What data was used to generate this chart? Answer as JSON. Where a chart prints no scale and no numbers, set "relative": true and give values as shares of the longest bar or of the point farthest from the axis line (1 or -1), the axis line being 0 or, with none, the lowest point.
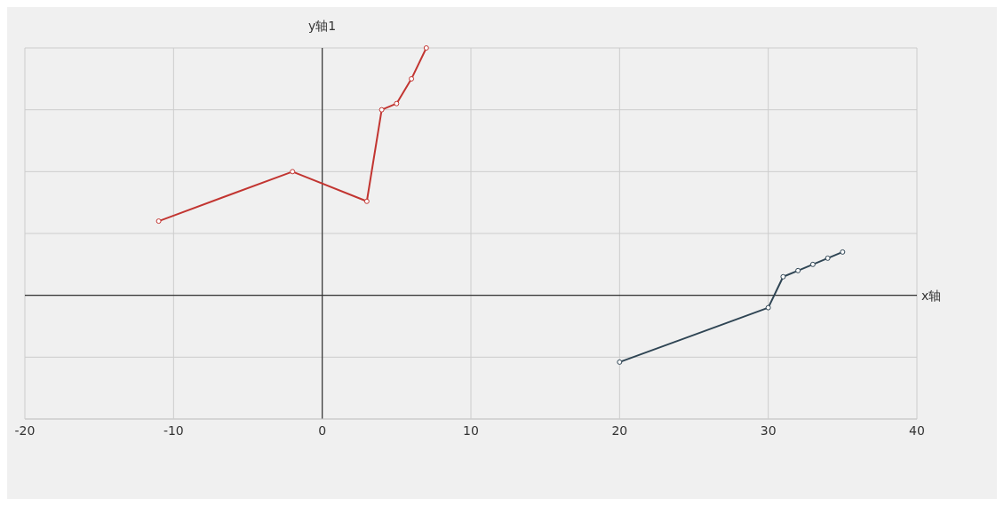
{
  "chart_data": {
    "type": "line",
    "xlabel": "x轴",
    "ylabel": "y轴1",
    "relative": true,
    "xlim": [
      -20,
      40
    ],
    "xticks": [
      -20,
      -10,
      0,
      10,
      20,
      30,
      40
    ],
    "grid": true,
    "marker": "circle",
    "line_style": "solid",
    "series": [
      {
        "color": "#c23531",
        "x": [
          -11,
          -2,
          3,
          4,
          5,
          6,
          7
        ],
        "values": [
          0.3,
          0.5,
          0.38,
          0.75,
          0.775,
          0.875,
          1
        ]
      },
      {
        "color": "#2f4554",
        "x": [
          20,
          30,
          31,
          32,
          33,
          34,
          35
        ],
        "values": [
          -0.27,
          -0.05,
          0.075,
          0.1,
          0.125,
          0.15,
          0.175
        ]
      }
    ]
  }
}
